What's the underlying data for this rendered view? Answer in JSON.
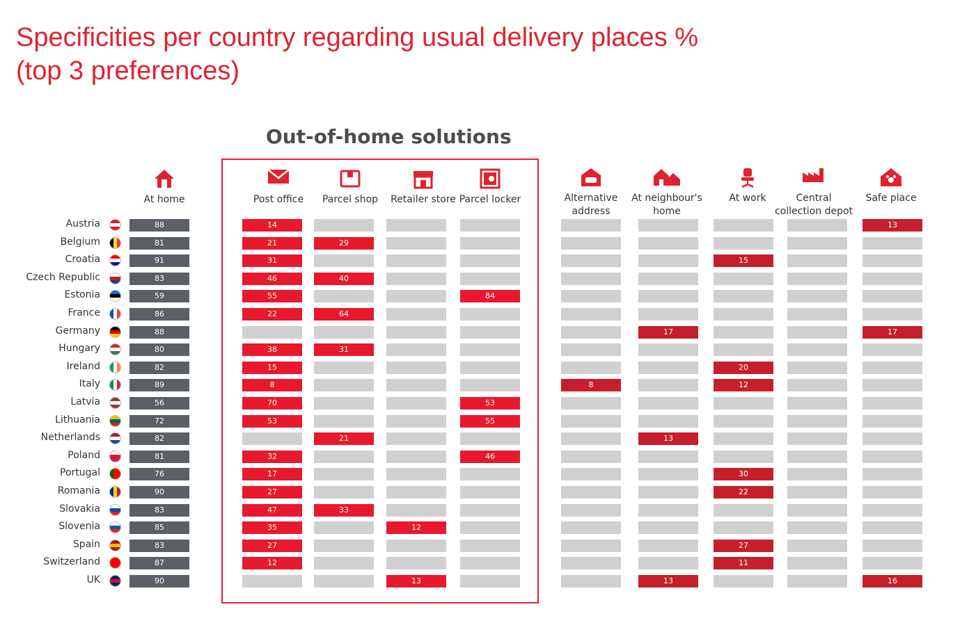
{
  "title_line1": "Specificities per country regarding usual delivery places %",
  "title_line2": "(top 3 preferences)",
  "subtitle": "Out-of-home solutions",
  "colors": {
    "accent": "#e0222f",
    "home_bar": "#5a6065",
    "ooh_bar": "#e8192c",
    "other_bar": "#c61f2b",
    "empty_bar": "#d0d0d0"
  },
  "chart_data": {
    "type": "table",
    "title": "Specificities per country regarding usual delivery places % (top 3 preferences)",
    "group_label": "Out-of-home solutions",
    "columns": [
      {
        "key": "home",
        "label": "At home",
        "icon": "house-icon",
        "group": "home"
      },
      {
        "key": "post",
        "label": "Post office",
        "icon": "envelope-icon",
        "group": "ooh"
      },
      {
        "key": "parcel_shop",
        "label": "Parcel shop",
        "icon": "parcel-box-icon",
        "group": "ooh"
      },
      {
        "key": "retailer",
        "label": "Retailer store",
        "icon": "store-icon",
        "group": "ooh"
      },
      {
        "key": "locker",
        "label": "Parcel locker",
        "icon": "locker-safe-icon",
        "group": "ooh"
      },
      {
        "key": "alt",
        "label": "Alternative address",
        "icon": "car-garage-icon",
        "group": "other"
      },
      {
        "key": "neigh",
        "label": "At neighbour's home",
        "icon": "houses-icon",
        "group": "other"
      },
      {
        "key": "work",
        "label": "At work",
        "icon": "office-chair-icon",
        "group": "other"
      },
      {
        "key": "depot",
        "label": "Central collection depot",
        "icon": "factory-icon",
        "group": "other"
      },
      {
        "key": "safe",
        "label": "Safe place",
        "icon": "paw-house-icon",
        "group": "other"
      }
    ],
    "rows": [
      {
        "country": "Austria",
        "flag": [
          "#e8192c",
          "#ffffff",
          "#e8192c"
        ],
        "values": [
          88,
          14,
          null,
          null,
          null,
          null,
          null,
          null,
          null,
          13
        ]
      },
      {
        "country": "Belgium",
        "flag": [
          "#000000",
          "#fdda24",
          "#ef3340"
        ],
        "flag_dir": "v",
        "values": [
          81,
          21,
          29,
          null,
          null,
          null,
          null,
          null,
          null,
          null
        ]
      },
      {
        "country": "Croatia",
        "flag": [
          "#ff0000",
          "#ffffff",
          "#171796"
        ],
        "values": [
          91,
          31,
          null,
          null,
          null,
          null,
          null,
          15,
          null,
          null
        ]
      },
      {
        "country": "Czech Republic",
        "flag": [
          "#ffffff",
          "#d7141a",
          "#11457e"
        ],
        "values": [
          83,
          46,
          40,
          null,
          null,
          null,
          null,
          null,
          null,
          null
        ]
      },
      {
        "country": "Estonia",
        "flag": [
          "#0072ce",
          "#000000",
          "#ffffff"
        ],
        "values": [
          59,
          55,
          null,
          null,
          84,
          null,
          null,
          null,
          null,
          null
        ]
      },
      {
        "country": "France",
        "flag": [
          "#0055a4",
          "#ffffff",
          "#ef4135"
        ],
        "flag_dir": "v",
        "values": [
          86,
          22,
          64,
          null,
          null,
          null,
          null,
          null,
          null,
          null
        ]
      },
      {
        "country": "Germany",
        "flag": [
          "#000000",
          "#dd0000",
          "#ffce00"
        ],
        "values": [
          88,
          null,
          null,
          null,
          null,
          null,
          17,
          null,
          null,
          17
        ]
      },
      {
        "country": "Hungary",
        "flag": [
          "#ce2939",
          "#ffffff",
          "#477050"
        ],
        "values": [
          80,
          38,
          31,
          null,
          null,
          null,
          null,
          null,
          null,
          null
        ]
      },
      {
        "country": "Ireland",
        "flag": [
          "#169b62",
          "#ffffff",
          "#ff883e"
        ],
        "flag_dir": "v",
        "values": [
          82,
          15,
          null,
          null,
          null,
          null,
          null,
          20,
          null,
          null
        ]
      },
      {
        "country": "Italy",
        "flag": [
          "#009246",
          "#ffffff",
          "#ce2b37"
        ],
        "flag_dir": "v",
        "values": [
          89,
          8,
          null,
          null,
          null,
          8,
          null,
          12,
          null,
          null
        ]
      },
      {
        "country": "Latvia",
        "flag": [
          "#9e3039",
          "#ffffff",
          "#9e3039"
        ],
        "values": [
          56,
          70,
          null,
          null,
          53,
          null,
          null,
          null,
          null,
          null
        ]
      },
      {
        "country": "Lithuania",
        "flag": [
          "#fdb913",
          "#006a44",
          "#c1272d"
        ],
        "values": [
          72,
          53,
          null,
          null,
          55,
          null,
          null,
          null,
          null,
          null
        ]
      },
      {
        "country": "Netherlands",
        "flag": [
          "#ae1c28",
          "#ffffff",
          "#21468b"
        ],
        "values": [
          82,
          null,
          21,
          null,
          null,
          null,
          13,
          null,
          null,
          null
        ]
      },
      {
        "country": "Poland",
        "flag": [
          "#ffffff",
          "#dc143c",
          "#dc143c"
        ],
        "values": [
          81,
          32,
          null,
          null,
          46,
          null,
          null,
          null,
          null,
          null
        ]
      },
      {
        "country": "Portugal",
        "flag": [
          "#006600",
          "#ff0000",
          "#ff0000"
        ],
        "flag_dir": "v",
        "values": [
          76,
          17,
          null,
          null,
          null,
          null,
          null,
          30,
          null,
          null
        ]
      },
      {
        "country": "Romania",
        "flag": [
          "#002b7f",
          "#fcd116",
          "#ce1126"
        ],
        "flag_dir": "v",
        "values": [
          90,
          27,
          null,
          null,
          null,
          null,
          null,
          22,
          null,
          null
        ]
      },
      {
        "country": "Slovakia",
        "flag": [
          "#ffffff",
          "#0b4ea2",
          "#ee1c25"
        ],
        "values": [
          83,
          47,
          33,
          null,
          null,
          null,
          null,
          null,
          null,
          null
        ]
      },
      {
        "country": "Slovenia",
        "flag": [
          "#ffffff",
          "#005da4",
          "#ed1c24"
        ],
        "values": [
          85,
          35,
          null,
          12,
          null,
          null,
          null,
          null,
          null,
          null
        ]
      },
      {
        "country": "Spain",
        "flag": [
          "#aa151b",
          "#f1bf00",
          "#aa151b"
        ],
        "values": [
          83,
          27,
          null,
          null,
          null,
          null,
          null,
          27,
          null,
          null
        ]
      },
      {
        "country": "Switzerland",
        "flag": [
          "#ff0000",
          "#ff0000",
          "#ff0000"
        ],
        "values": [
          87,
          12,
          null,
          null,
          null,
          null,
          null,
          11,
          null,
          null
        ]
      },
      {
        "country": "UK",
        "flag": [
          "#012169",
          "#c8102e",
          "#012169"
        ],
        "values": [
          90,
          null,
          null,
          13,
          null,
          null,
          13,
          null,
          null,
          16
        ]
      }
    ]
  }
}
